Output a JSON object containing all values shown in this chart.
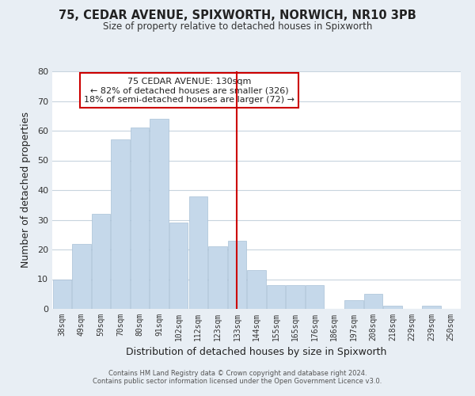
{
  "title": "75, CEDAR AVENUE, SPIXWORTH, NORWICH, NR10 3PB",
  "subtitle": "Size of property relative to detached houses in Spixworth",
  "xlabel": "Distribution of detached houses by size in Spixworth",
  "ylabel": "Number of detached properties",
  "bar_labels": [
    "38sqm",
    "49sqm",
    "59sqm",
    "70sqm",
    "80sqm",
    "91sqm",
    "102sqm",
    "112sqm",
    "123sqm",
    "133sqm",
    "144sqm",
    "155sqm",
    "165sqm",
    "176sqm",
    "186sqm",
    "197sqm",
    "208sqm",
    "218sqm",
    "229sqm",
    "239sqm",
    "250sqm"
  ],
  "bar_values": [
    10,
    22,
    32,
    57,
    61,
    64,
    29,
    38,
    21,
    23,
    13,
    8,
    8,
    8,
    0,
    3,
    5,
    1,
    0,
    1,
    0
  ],
  "bar_color": "#c5d8ea",
  "bar_edge_color": "#a8c0d6",
  "vline_index": 9,
  "vline_color": "#cc0000",
  "annotation_line1": "75 CEDAR AVENUE: 130sqm",
  "annotation_line2": "← 82% of detached houses are smaller (326)",
  "annotation_line3": "18% of semi-detached houses are larger (72) →",
  "box_edge_color": "#cc0000",
  "ylim": [
    0,
    80
  ],
  "yticks": [
    0,
    10,
    20,
    30,
    40,
    50,
    60,
    70,
    80
  ],
  "footer_line1": "Contains HM Land Registry data © Crown copyright and database right 2024.",
  "footer_line2": "Contains public sector information licensed under the Open Government Licence v3.0.",
  "bg_color": "#e8eef4",
  "plot_bg_color": "#ffffff",
  "grid_color": "#c8d4de"
}
